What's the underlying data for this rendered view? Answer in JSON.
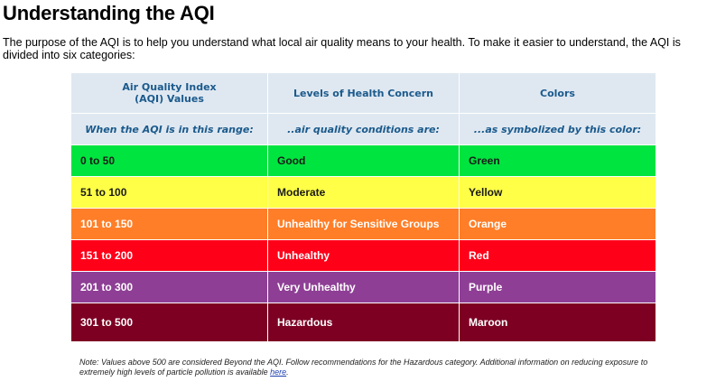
{
  "page": {
    "title": "Understanding the AQI",
    "intro": "The purpose of the AQI is to help you understand what local air quality means to your health. To make it easier to understand, the AQI is divided into six categories:"
  },
  "table": {
    "headers": [
      "Air Quality Index (AQI) Values",
      "Levels of Health Concern",
      "Colors"
    ],
    "header_line1": "Air Quality Index",
    "header_line2": "(AQI) Values",
    "subheaders": [
      "When the AQI is in this range:",
      "..air quality conditions are:",
      "...as symbolized by this color:"
    ],
    "rows": [
      {
        "range": "0 to 50",
        "level": "Good",
        "color_name": "Green",
        "bg": "#00e43f",
        "fg": "#1a1a1a"
      },
      {
        "range": "51 to 100",
        "level": "Moderate",
        "color_name": "Yellow",
        "bg": "#ffff47",
        "fg": "#1a1a1a"
      },
      {
        "range": "101 to 150",
        "level": "Unhealthy for Sensitive Groups",
        "color_name": "Orange",
        "bg": "#ff7e27",
        "fg": "#ffffff"
      },
      {
        "range": "151 to 200",
        "level": "Unhealthy",
        "color_name": "Red",
        "bg": "#ff0019",
        "fg": "#ffffff"
      },
      {
        "range": "201 to 300",
        "level": "Very Unhealthy",
        "color_name": "Purple",
        "bg": "#8e3f95",
        "fg": "#ffffff"
      },
      {
        "range": "301 to 500",
        "level": "Hazardous",
        "color_name": "Maroon",
        "bg": "#7d0023",
        "fg": "#ffffff"
      }
    ]
  },
  "note": {
    "text": "Note: Values above 500 are considered Beyond the AQI. Follow recommendations for the Hazardous category. Additional information on reducing exposure to extremely high levels of particle pollution is available ",
    "link": "here",
    "end": "."
  }
}
